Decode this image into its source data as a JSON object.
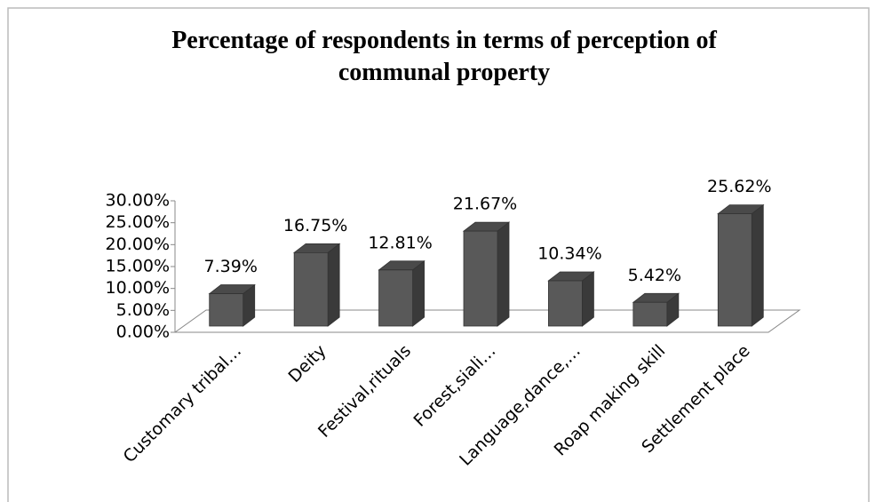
{
  "chart_data": {
    "type": "bar3d",
    "title": "Percentage of respondents in terms of perception of communal property",
    "categories": [
      "Customary tribal…",
      "Deity",
      "Festival,rituals",
      "Forest,siali…",
      "Language,dance,…",
      "Roap making skill",
      "Settlement place"
    ],
    "values": [
      7.39,
      16.75,
      12.81,
      21.67,
      10.34,
      5.42,
      25.62
    ],
    "value_labels": [
      "7.39%",
      "16.75%",
      "12.81%",
      "21.67%",
      "10.34%",
      "5.42%",
      "25.62%"
    ],
    "color": "#595959",
    "ylim": [
      0,
      30
    ],
    "yticks": [
      {
        "value": 0,
        "label": "0.00%"
      },
      {
        "value": 5,
        "label": "5.00%"
      },
      {
        "value": 10,
        "label": "10.00%"
      },
      {
        "value": 15,
        "label": "15.00%"
      },
      {
        "value": 20,
        "label": "20.00%"
      },
      {
        "value": 25,
        "label": "25.00%"
      },
      {
        "value": 30,
        "label": "30.00%"
      }
    ]
  }
}
